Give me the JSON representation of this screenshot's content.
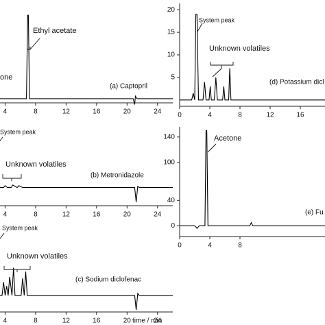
{
  "chart_data": [
    {
      "type": "line",
      "title": "(a) Captopril",
      "annotations": [
        "Ethyl acetate",
        "one"
      ],
      "x": [
        0,
        2.7,
        2.9,
        3.1,
        3.3,
        6.8,
        6.95,
        7.05,
        7.2,
        20.8,
        21.0,
        21.1,
        21.3,
        26
      ],
      "series": [
        {
          "color": "#000000",
          "values": [
            0,
            0,
            4,
            8,
            0,
            0,
            100,
            100,
            0,
            0,
            -7,
            3,
            0,
            0
          ]
        }
      ],
      "xlim": [
        0,
        26
      ],
      "ylim": [
        -5,
        110
      ],
      "xticks": [
        4,
        8,
        12,
        16,
        20,
        24
      ]
    },
    {
      "type": "line",
      "title": "(b) Metronidazole",
      "annotations": [
        "System peak",
        "Unknown volatiles"
      ],
      "x": [
        0,
        2.0,
        2.2,
        2.4,
        3.8,
        4.0,
        4.3,
        4.8,
        5.0,
        5.6,
        5.8,
        6.3,
        21.0,
        21.2,
        21.4,
        21.6,
        26
      ],
      "series": [
        {
          "color": "#000000",
          "values": [
            0,
            0,
            60,
            0,
            0,
            3,
            0,
            0,
            4,
            0,
            3,
            0,
            0,
            -24,
            2,
            0,
            0
          ]
        }
      ],
      "xlim": [
        0,
        26
      ],
      "ylim": [
        -30,
        100
      ],
      "xticks": [
        4,
        8,
        12,
        16,
        20,
        24
      ]
    },
    {
      "type": "line",
      "title": "(c) Sodium diclofenac",
      "xlabel": "time / min",
      "annotations": [
        "System peak",
        "Unknown volatiles"
      ],
      "x": [
        0,
        2.0,
        2.2,
        2.4,
        3.6,
        3.8,
        4.0,
        4.2,
        4.4,
        4.6,
        4.9,
        5.1,
        5.3,
        6.1,
        6.3,
        6.5,
        6.7,
        6.9,
        7.1,
        21.0,
        21.2,
        21.4,
        21.6,
        26
      ],
      "series": [
        {
          "color": "#000000",
          "values": [
            0,
            0,
            60,
            0,
            0,
            20,
            0,
            14,
            0,
            28,
            0,
            42,
            0,
            0,
            26,
            0,
            36,
            0,
            0,
            0,
            -22,
            3,
            0,
            0
          ]
        }
      ],
      "xlim": [
        0,
        26
      ],
      "ylim": [
        -25,
        115
      ],
      "xticks": [
        4,
        8,
        12,
        16,
        20,
        24
      ]
    },
    {
      "type": "line",
      "title": "(d) Potassium dicl",
      "annotations": [
        "System peak",
        "Unknown volatiles"
      ],
      "x": [
        0,
        1.6,
        1.8,
        2.0,
        2.15,
        2.3,
        2.5,
        3.1,
        3.3,
        3.5,
        3.9,
        4.05,
        4.2,
        4.6,
        4.8,
        5.0,
        5.7,
        5.85,
        6.0,
        6.5,
        6.65,
        6.8,
        26
      ],
      "series": [
        {
          "color": "#000000",
          "values": [
            0,
            0,
            1.5,
            0,
            19,
            19,
            0,
            0,
            4,
            0,
            0,
            3,
            0,
            0,
            5,
            0,
            0,
            3,
            0,
            0,
            7,
            0,
            0
          ]
        }
      ],
      "xlim": [
        0,
        26
      ],
      "ylim": [
        -1.4,
        21.4
      ],
      "xticks": [
        0,
        4,
        8,
        12,
        16
      ],
      "yticks": [
        5,
        10,
        15,
        20
      ]
    },
    {
      "type": "line",
      "title": "(e) Fu",
      "annotations": [
        "Acetone"
      ],
      "x": [
        0,
        2.0,
        2.3,
        2.6,
        3.35,
        3.5,
        3.6,
        3.75,
        9.3,
        9.5,
        9.7,
        26
      ],
      "series": [
        {
          "color": "#000000",
          "values": [
            0,
            0,
            -4,
            0,
            0,
            150,
            150,
            0,
            0,
            5,
            0,
            0
          ]
        }
      ],
      "xlim": [
        0,
        26
      ],
      "ylim": [
        -17,
        156
      ],
      "xticks": [
        0,
        4,
        8
      ],
      "yticks": [
        0,
        40,
        100,
        140
      ]
    }
  ]
}
